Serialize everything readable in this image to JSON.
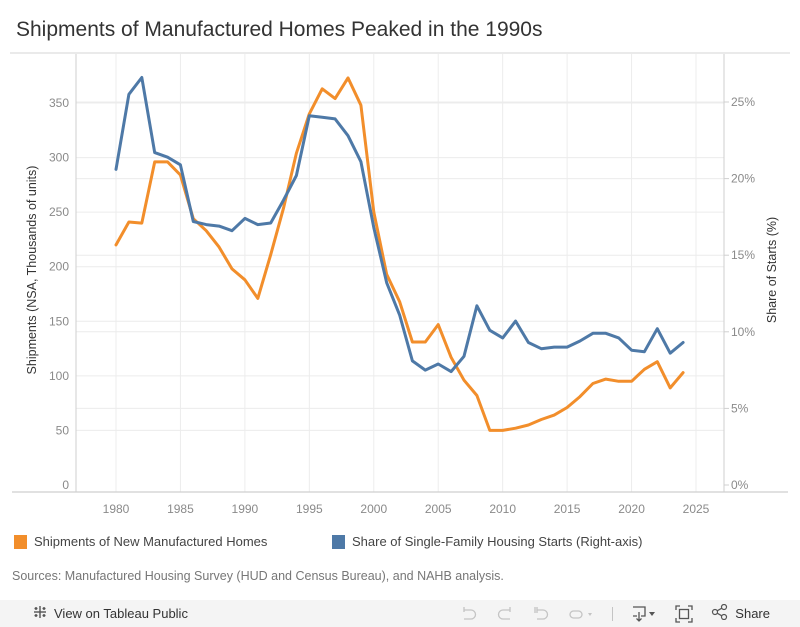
{
  "title": "Shipments of Manufactured Homes Peaked in the 1990s",
  "legend": [
    {
      "label": "Shipments of New Manufactured Homes",
      "color": "#f28e2b"
    },
    {
      "label": "Share of Single-Family Housing Starts (Right-axis)",
      "color": "#4e79a7"
    }
  ],
  "source": "Sources: Manufactured Housing Survey (HUD and Census Bureau), and NAHB analysis.",
  "toolbar": {
    "view_label": "View on Tableau Public",
    "share_label": "Share",
    "icons": [
      "tableau-logo-icon",
      "undo-icon",
      "redo-icon",
      "revert-icon",
      "refresh-icon",
      "dropdown-icon",
      "download-icon",
      "fullscreen-icon",
      "share-icon"
    ]
  },
  "chart_data": {
    "type": "line",
    "title": "Shipments of Manufactured Homes Peaked in the 1990s",
    "xlabel": "",
    "ylabel": "Shipments (NSA, Thousands of units)",
    "y2label": "Share of Starts (%)",
    "xlim": [
      1976,
      2028
    ],
    "ylim": [
      0,
      380
    ],
    "y2lim": [
      0,
      27.3
    ],
    "xticks": [
      "1980",
      "1985",
      "1990",
      "1995",
      "2000",
      "2005",
      "2010",
      "2015",
      "2020",
      "2025"
    ],
    "yticks": [
      "0",
      "50",
      "100",
      "150",
      "200",
      "250",
      "300",
      "350"
    ],
    "y2ticks": [
      "0%",
      "5%",
      "10%",
      "15%",
      "20%",
      "25%"
    ],
    "grid": true,
    "legend_position": "bottom",
    "x": [
      1980,
      1981,
      1982,
      1983,
      1984,
      1985,
      1986,
      1987,
      1988,
      1989,
      1990,
      1991,
      1992,
      1993,
      1994,
      1995,
      1996,
      1997,
      1998,
      1999,
      2000,
      2001,
      2002,
      2003,
      2004,
      2005,
      2006,
      2007,
      2008,
      2009,
      2010,
      2011,
      2012,
      2013,
      2014,
      2015,
      2016,
      2017,
      2018,
      2019,
      2020,
      2021,
      2022,
      2023,
      2024
    ],
    "series": [
      {
        "name": "Shipments of New Manufactured Homes",
        "axis": "left",
        "color": "#f28e2b",
        "values": [
          220,
          241,
          240,
          296,
          296,
          284,
          244,
          233,
          218,
          198,
          188,
          171,
          211,
          254,
          304,
          340,
          363,
          354,
          373,
          348,
          250,
          193,
          168,
          131,
          131,
          147,
          117,
          96,
          82,
          50,
          50,
          52,
          55,
          60,
          64,
          71,
          81,
          93,
          97,
          95,
          95,
          106,
          113,
          89,
          103
        ]
      },
      {
        "name": "Share of Single-Family Housing Starts (Right-axis)",
        "axis": "right",
        "color": "#4e79a7",
        "values": [
          20.6,
          25.5,
          26.6,
          21.7,
          21.4,
          20.9,
          17.2,
          17.0,
          16.9,
          16.6,
          17.4,
          17.0,
          17.1,
          18.6,
          20.2,
          24.1,
          24.0,
          23.9,
          22.8,
          21.1,
          16.8,
          13.2,
          11.1,
          8.1,
          7.5,
          7.9,
          7.4,
          8.4,
          11.7,
          10.1,
          9.6,
          10.7,
          9.3,
          8.9,
          9.0,
          9.0,
          9.4,
          9.9,
          9.9,
          9.6,
          8.8,
          8.7,
          10.2,
          8.6,
          9.3
        ]
      }
    ]
  }
}
